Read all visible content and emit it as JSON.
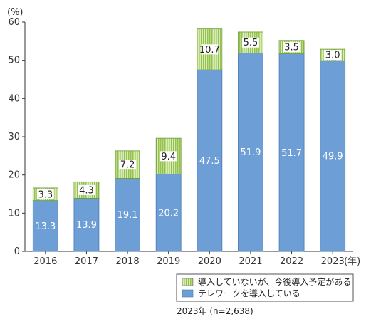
{
  "chart_data": {
    "type": "bar",
    "stacked": true,
    "unit_label": "(%)",
    "x_unit_label": "(年)",
    "categories": [
      "2016",
      "2017",
      "2018",
      "2019",
      "2020",
      "2021",
      "2022",
      "2023"
    ],
    "series": [
      {
        "name": "テレワークを導入している",
        "color": "#6d9fd6",
        "values": [
          13.3,
          13.9,
          19.1,
          20.2,
          47.5,
          51.9,
          51.7,
          49.9
        ],
        "labels": [
          "13.3",
          "13.9",
          "19.1",
          "20.2",
          "47.5",
          "51.9",
          "51.7",
          "49.9"
        ]
      },
      {
        "name": "導入していないが、今後導入予定がある",
        "color": "#a9d26a",
        "values": [
          3.3,
          4.3,
          7.2,
          9.4,
          10.7,
          5.5,
          3.5,
          3.0
        ],
        "labels": [
          "3.3",
          "4.3",
          "7.2",
          "9.4",
          "10.7",
          "5.5",
          "3.5",
          "3.0"
        ]
      }
    ],
    "ylim": [
      0,
      60
    ],
    "yticks": [
      0,
      10,
      20,
      30,
      40,
      50,
      60
    ],
    "ytick_labels": [
      "0",
      "10",
      "20",
      "30",
      "40",
      "50",
      "60"
    ],
    "grid": false,
    "legend_position": "bottom-right",
    "legend_items": [
      "導入していないが、今後導入予定がある",
      "テレワークを導入している"
    ],
    "note": "2023年 (n=2,638)"
  }
}
